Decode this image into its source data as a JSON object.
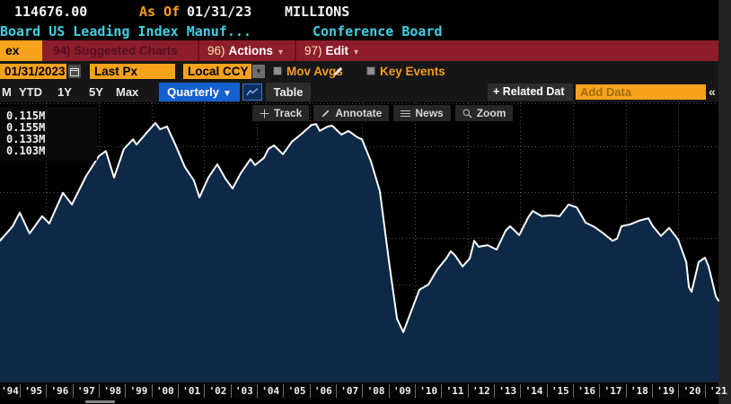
{
  "header": {
    "last_value": "114676.00",
    "as_of_label": "As Of",
    "as_of_date": "01/31/23",
    "units_label": "MILLIONS",
    "security_title": "Board US Leading Index Manuf...",
    "source_name": "Conference Board"
  },
  "menu_bar": {
    "active_tab_label": "ex",
    "suggested_charts_label": "94) Suggested Charts",
    "actions_num": "96)",
    "actions_label": "Actions",
    "edit_num": "97)",
    "edit_label": "Edit",
    "dropdown_glyph": "▾"
  },
  "settings_bar": {
    "date_value": "01/31/2023",
    "price_field_value": "Last Px",
    "currency_value": "Local CCY",
    "mov_avgs_label": "Mov Avgs",
    "key_events_label": "Key Events"
  },
  "period_bar": {
    "ranges": [
      "M",
      "YTD",
      "1Y",
      "5Y",
      "Max"
    ],
    "frequency_value": "Quarterly",
    "frequency_arrow": "▼",
    "table_label": "Table",
    "related_data_label": "+ Related Dat",
    "add_data_placeholder": "Add Data",
    "collapse_glyph": "«"
  },
  "chart_toolbar": {
    "track": "Track",
    "annotate": "Annotate",
    "news": "News",
    "zoom": "Zoom"
  },
  "legend": {
    "values": [
      "0.115M",
      "0.155M",
      "0.133M",
      "0.103M"
    ]
  },
  "chart_data": {
    "type": "area",
    "title": "Conference Board US Leading Index Manuf...",
    "unit": "MILLIONS",
    "frequency": "Quarterly",
    "as_of": "01/31/23",
    "stats": {
      "last": "0.115M",
      "high": "0.155M",
      "average": "0.133M",
      "low": "0.103M"
    },
    "x_domain": [
      1994.25,
      2021.52
    ],
    "y_domain": [
      0.0907,
      0.1601
    ],
    "grid_years": [
      1996,
      1998,
      2000,
      2002,
      2004,
      2006,
      2008,
      2010,
      2012,
      2014,
      2016,
      2018,
      2020
    ],
    "grid_values": [
      0.092,
      0.1034,
      0.1148,
      0.1264,
      0.1378,
      0.1492
    ],
    "x_tick_labels": [
      "'94",
      "'95",
      "'96",
      "'97",
      "'98",
      "'99",
      "'00",
      "'01",
      "'02",
      "'03",
      "'04",
      "'05",
      "'06",
      "'07",
      "'08",
      "'09",
      "'10",
      "'11",
      "'12",
      "'13",
      "'14",
      "'15",
      "'16",
      "'17",
      "'18",
      "'19",
      "'20",
      "'21"
    ],
    "line_color": "#ffffff",
    "fill_color": "#0d2947",
    "grid_color": "#54545c",
    "points": [
      [
        1994.25,
        0.1257
      ],
      [
        1994.73,
        0.1293
      ],
      [
        1995.0,
        0.1327
      ],
      [
        1995.37,
        0.1275
      ],
      [
        1995.85,
        0.1318
      ],
      [
        1996.12,
        0.13
      ],
      [
        1996.64,
        0.1376
      ],
      [
        1996.98,
        0.1347
      ],
      [
        1997.52,
        0.1418
      ],
      [
        1998.0,
        0.1467
      ],
      [
        1998.27,
        0.148
      ],
      [
        1998.58,
        0.1414
      ],
      [
        1998.95,
        0.1485
      ],
      [
        1999.3,
        0.1509
      ],
      [
        1999.43,
        0.1496
      ],
      [
        1999.81,
        0.1525
      ],
      [
        2000.15,
        0.155
      ],
      [
        2000.32,
        0.1534
      ],
      [
        2000.59,
        0.1541
      ],
      [
        2000.93,
        0.1492
      ],
      [
        2001.27,
        0.144
      ],
      [
        2001.61,
        0.1407
      ],
      [
        2001.82,
        0.1365
      ],
      [
        2002.16,
        0.1414
      ],
      [
        2002.5,
        0.1447
      ],
      [
        2002.81,
        0.1411
      ],
      [
        2003.08,
        0.1387
      ],
      [
        2003.39,
        0.1425
      ],
      [
        2003.76,
        0.146
      ],
      [
        2003.93,
        0.1445
      ],
      [
        2004.27,
        0.1463
      ],
      [
        2004.44,
        0.1485
      ],
      [
        2004.65,
        0.1494
      ],
      [
        2004.99,
        0.1472
      ],
      [
        2005.33,
        0.1503
      ],
      [
        2005.7,
        0.1523
      ],
      [
        2006.08,
        0.1545
      ],
      [
        2006.25,
        0.1547
      ],
      [
        2006.39,
        0.153
      ],
      [
        2006.69,
        0.1541
      ],
      [
        2006.86,
        0.1543
      ],
      [
        2007.21,
        0.1521
      ],
      [
        2007.48,
        0.153
      ],
      [
        2007.82,
        0.1514
      ],
      [
        2007.99,
        0.1509
      ],
      [
        2008.33,
        0.1454
      ],
      [
        2008.67,
        0.138
      ],
      [
        2009.01,
        0.1208
      ],
      [
        2009.32,
        0.1063
      ],
      [
        2009.56,
        0.103
      ],
      [
        2009.83,
        0.1077
      ],
      [
        2010.17,
        0.1135
      ],
      [
        2010.51,
        0.1148
      ],
      [
        2010.85,
        0.1186
      ],
      [
        2011.19,
        0.1213
      ],
      [
        2011.36,
        0.1231
      ],
      [
        2011.53,
        0.122
      ],
      [
        2011.81,
        0.1193
      ],
      [
        2012.08,
        0.1213
      ],
      [
        2012.25,
        0.1257
      ],
      [
        2012.42,
        0.1242
      ],
      [
        2012.76,
        0.1246
      ],
      [
        2013.1,
        0.1235
      ],
      [
        2013.44,
        0.1282
      ],
      [
        2013.61,
        0.1293
      ],
      [
        2013.96,
        0.1271
      ],
      [
        2014.3,
        0.1315
      ],
      [
        2014.47,
        0.1331
      ],
      [
        2014.81,
        0.1318
      ],
      [
        2015.15,
        0.132
      ],
      [
        2015.49,
        0.1318
      ],
      [
        2015.83,
        0.1347
      ],
      [
        2016.14,
        0.134
      ],
      [
        2016.48,
        0.1302
      ],
      [
        2016.82,
        0.1291
      ],
      [
        2017.16,
        0.1275
      ],
      [
        2017.5,
        0.1257
      ],
      [
        2017.67,
        0.1262
      ],
      [
        2017.84,
        0.1293
      ],
      [
        2018.18,
        0.1298
      ],
      [
        2018.52,
        0.1307
      ],
      [
        2018.86,
        0.1313
      ],
      [
        2019.03,
        0.1293
      ],
      [
        2019.34,
        0.1269
      ],
      [
        2019.65,
        0.1289
      ],
      [
        2019.99,
        0.126
      ],
      [
        2020.3,
        0.1204
      ],
      [
        2020.4,
        0.1142
      ],
      [
        2020.5,
        0.113
      ],
      [
        2020.77,
        0.1204
      ],
      [
        2021.01,
        0.1215
      ],
      [
        2021.15,
        0.1193
      ],
      [
        2021.42,
        0.1119
      ],
      [
        2021.52,
        0.1108
      ]
    ]
  }
}
